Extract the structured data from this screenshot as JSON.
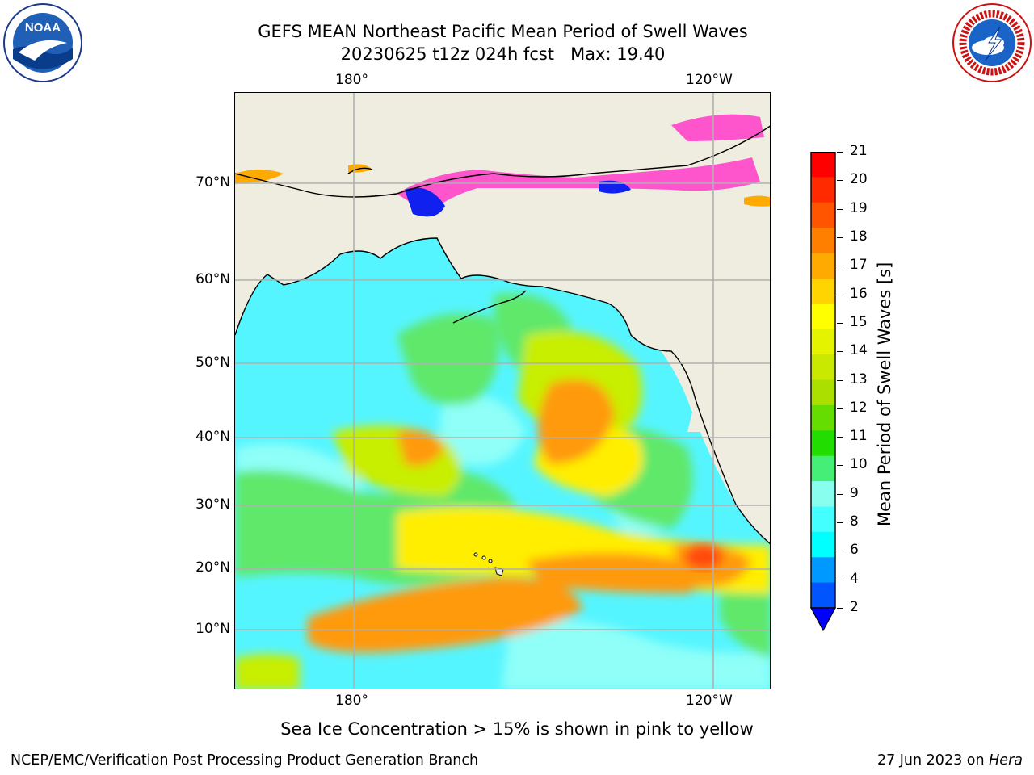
{
  "header": {
    "title_line1": "GEFS MEAN Northeast Pacific Mean Period of Swell Waves",
    "title_line2": "20230625 t12z 024h fcst   Max: 19.40"
  },
  "logos": {
    "noaa": {
      "icon": "noaa-logo",
      "text": "NOAA"
    },
    "nws": {
      "icon": "nws-logo"
    }
  },
  "axes": {
    "lon_ticks_top": [
      "180°",
      "120°W"
    ],
    "lon_ticks_bottom": [
      "180°",
      "120°W"
    ],
    "lat_ticks": [
      "70°N",
      "60°N",
      "50°N",
      "40°N",
      "30°N",
      "20°N",
      "10°N"
    ]
  },
  "colorbar": {
    "label": "Mean Period of Swell Waves [s]",
    "ticks": [
      "21",
      "20",
      "19",
      "18",
      "17",
      "16",
      "15",
      "14",
      "13",
      "12",
      "11",
      "10",
      "9",
      "8",
      "6",
      "4",
      "2"
    ],
    "colors": [
      "#ff0000",
      "#ff2a00",
      "#ff5500",
      "#ff7f00",
      "#ffaa00",
      "#ffd400",
      "#ffff00",
      "#e4f400",
      "#c9ea00",
      "#aadf00",
      "#66dd00",
      "#22dd00",
      "#44ee77",
      "#88ffee",
      "#44ffff",
      "#00ffff",
      "#0099ff",
      "#0055ff"
    ],
    "under_color": "#0000ff"
  },
  "map_colors": {
    "land": "#efeddf",
    "ocean_cyan": "#55f5ff",
    "ocean_lightcyan": "#8ffff8",
    "green": "#5fe86a",
    "yellowgreen": "#c8ee00",
    "yellow": "#ffee00",
    "orange": "#ff9a10",
    "red": "#ff4a10",
    "ice_pink": "#ff55cc",
    "ice_blue": "#1020ee",
    "grid": "#b0b0b0"
  },
  "note": "Sea Ice Concentration > 15% is shown in pink to yellow",
  "footer": {
    "left": "NCEP/EMC/Verification Post Processing Product Generation Branch",
    "right_date": "27 Jun 2023 on ",
    "right_machine": "Hera"
  }
}
